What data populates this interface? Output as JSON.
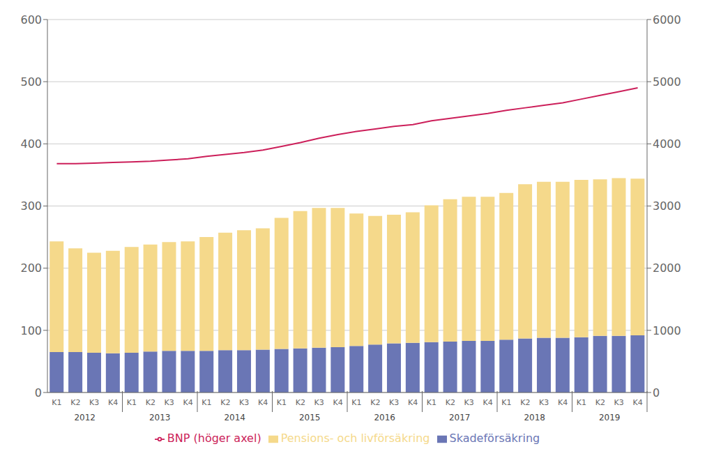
{
  "chart_data": {
    "type": "bar",
    "categories": [
      "K1",
      "K2",
      "K3",
      "K4",
      "K1",
      "K2",
      "K3",
      "K4",
      "K1",
      "K2",
      "K3",
      "K4",
      "K1",
      "K2",
      "K3",
      "K4",
      "K1",
      "K2",
      "K3",
      "K4",
      "K1",
      "K2",
      "K3",
      "K4",
      "K1",
      "K2",
      "K3",
      "K4",
      "K1",
      "K2",
      "K3",
      "K4"
    ],
    "category_groups": [
      "2012",
      "2012",
      "2012",
      "2012",
      "2013",
      "2013",
      "2013",
      "2013",
      "2014",
      "2014",
      "2014",
      "2014",
      "2015",
      "2015",
      "2015",
      "2015",
      "2016",
      "2016",
      "2016",
      "2016",
      "2017",
      "2017",
      "2017",
      "2017",
      "2018",
      "2018",
      "2018",
      "2018",
      "2019",
      "2019",
      "2019",
      "2019"
    ],
    "series": [
      {
        "name": "Skadeförsäkring",
        "type": "bar",
        "color": "#6a76b5",
        "values": [
          65,
          65,
          64,
          63,
          64,
          66,
          67,
          67,
          67,
          68,
          68,
          69,
          70,
          71,
          72,
          73,
          75,
          77,
          79,
          80,
          81,
          82,
          83,
          83,
          85,
          87,
          88,
          88,
          89,
          91,
          91,
          92
        ]
      },
      {
        "name": "Pensions- och livförsäkring",
        "type": "bar",
        "color": "#f5d98b",
        "values": [
          178,
          167,
          161,
          165,
          170,
          172,
          175,
          176,
          183,
          189,
          193,
          195,
          211,
          221,
          225,
          224,
          213,
          207,
          207,
          210,
          220,
          229,
          232,
          232,
          236,
          248,
          251,
          251,
          253,
          252,
          254,
          252
        ]
      },
      {
        "name": "BNP (höger axel)",
        "type": "line",
        "axis": "y2",
        "color": "#cc1f5a",
        "values": [
          3680,
          3680,
          3690,
          3700,
          3710,
          3720,
          3740,
          3760,
          3800,
          3830,
          3860,
          3900,
          3960,
          4020,
          4090,
          4150,
          4200,
          4240,
          4280,
          4310,
          4370,
          4410,
          4450,
          4490,
          4540,
          4580,
          4620,
          4660,
          4720,
          4780,
          4840,
          4900
        ]
      }
    ],
    "ylim": [
      0,
      600
    ],
    "yticks": [
      0,
      100,
      200,
      300,
      400,
      500,
      600
    ],
    "y2lim": [
      0,
      6000
    ],
    "y2ticks": [
      0,
      1000,
      2000,
      3000,
      4000,
      5000,
      6000
    ],
    "stacked": true,
    "grid": true,
    "legend": "bottom"
  }
}
